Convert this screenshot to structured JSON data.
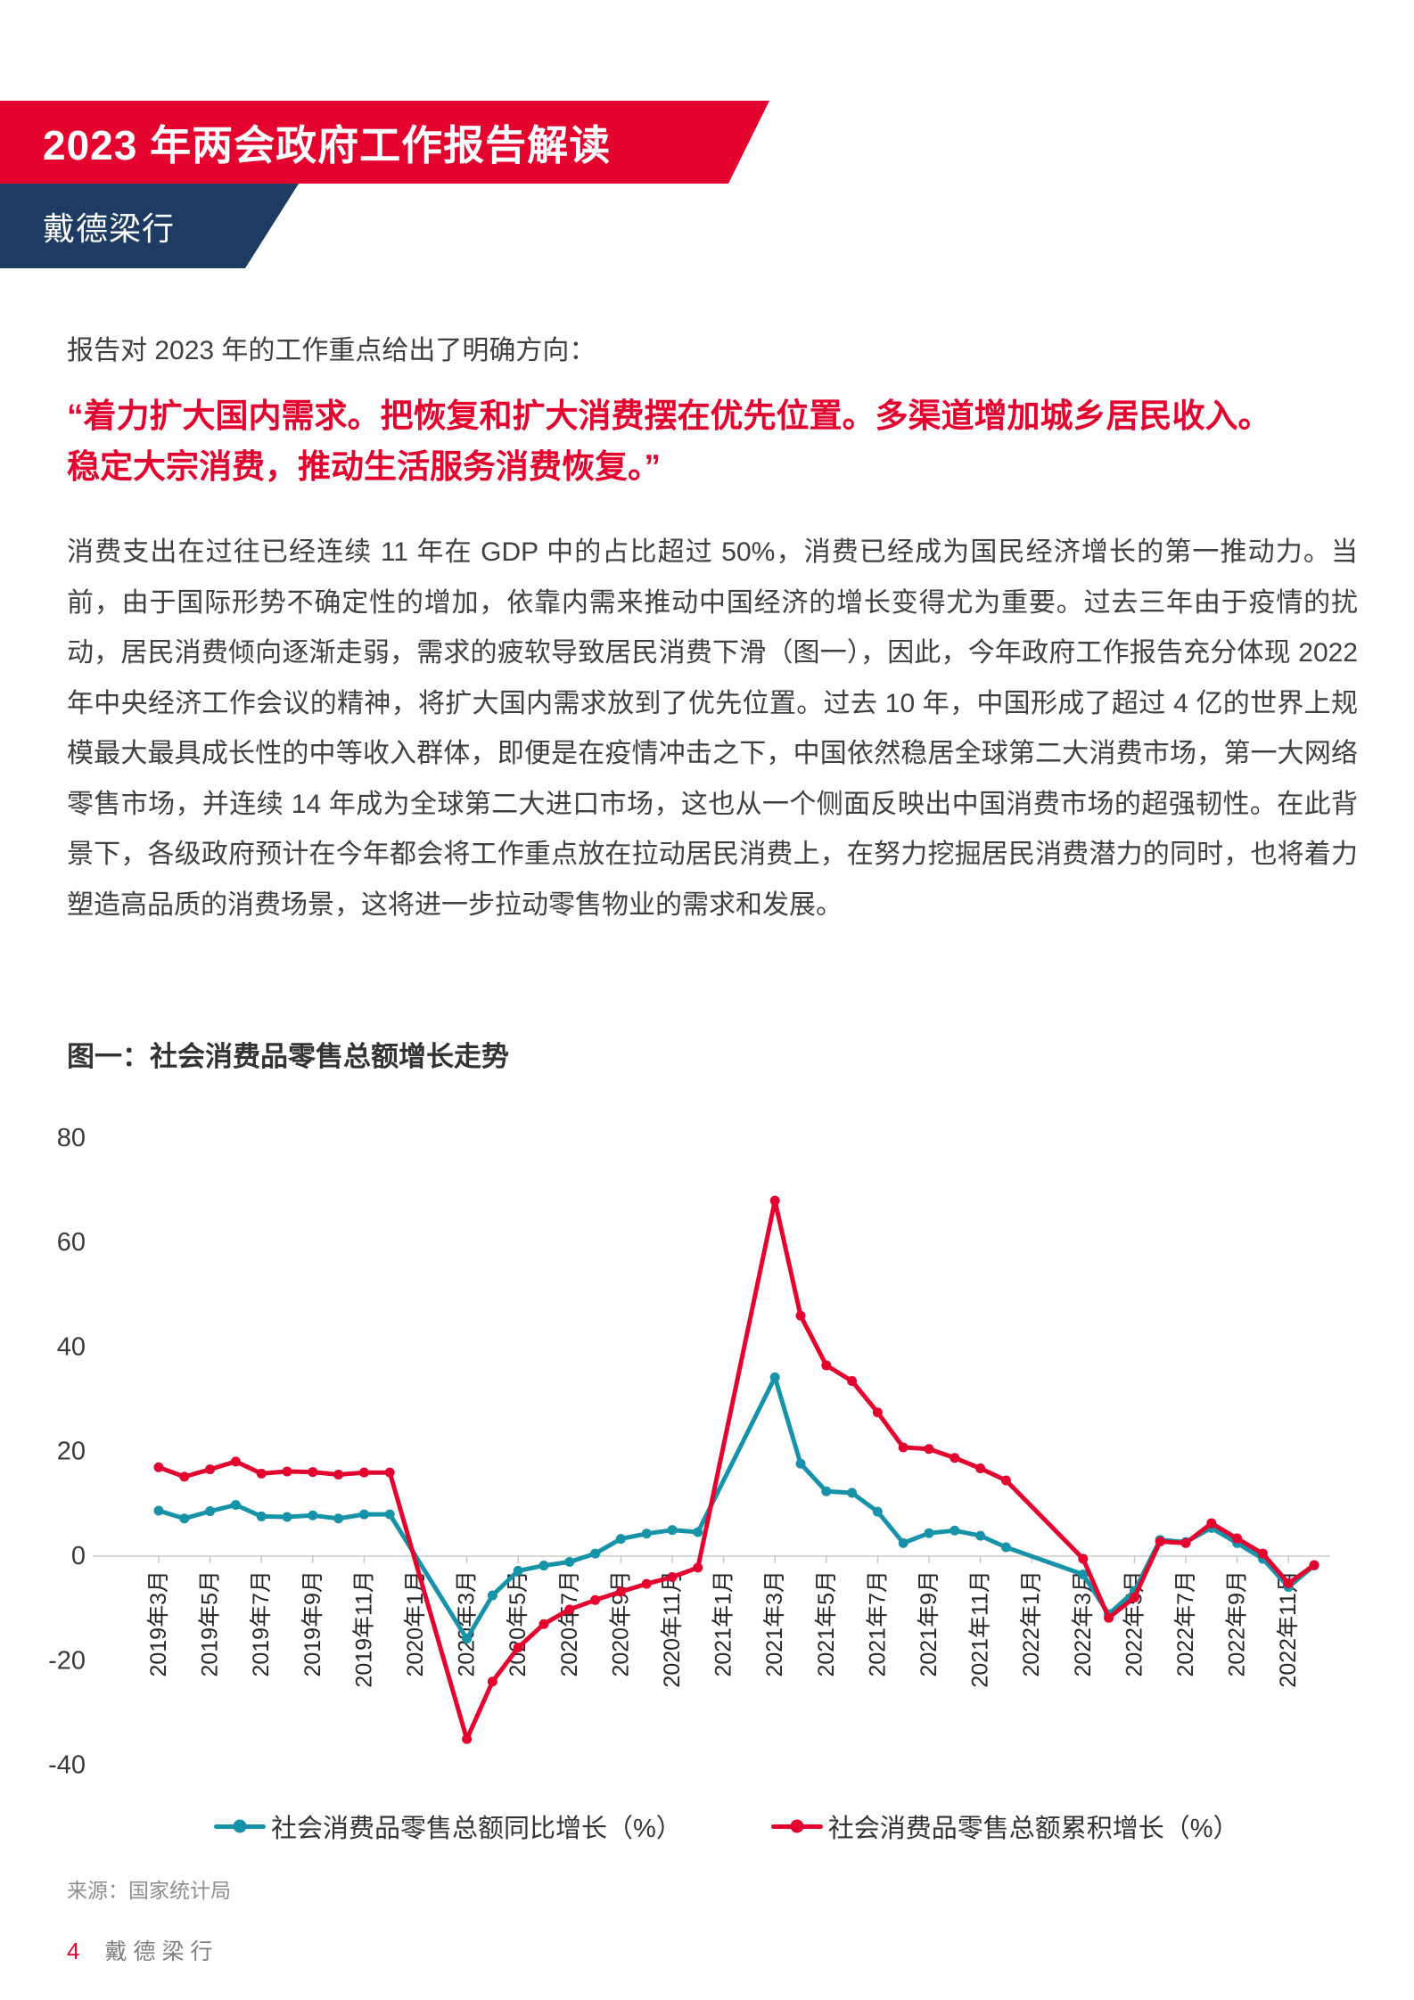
{
  "header": {
    "title": "2023 年两会政府工作报告解读",
    "brand": "戴德梁行",
    "banner_red": "#e4032e",
    "banner_navy": "#1e3c63"
  },
  "intro": "报告对 2023 年的工作重点给出了明确方向：",
  "quote": {
    "color": "#e4032e",
    "lines": [
      "“着力扩大国内需求。把恢复和扩大消费摆在优先位置。多渠道增加城乡居民收入。",
      "稳定大宗消费，推动生活服务消费恢复。”"
    ]
  },
  "paragraph": "消费支出在过往已经连续 11 年在 GDP 中的占比超过 50%，消费已经成为国民经济增长的第一推动力。当前，由于国际形势不确定性的增加，依靠内需来推动中国经济的增长变得尤为重要。过去三年由于疫情的扰动，居民消费倾向逐渐走弱，需求的疲软导致居民消费下滑（图一），因此，今年政府工作报告充分体现 2022 年中央经济工作会议的精神，将扩大国内需求放到了优先位置。过去 10 年，中国形成了超过 4 亿的世界上规模最大最具成长性的中等收入群体，即便是在疫情冲击之下，中国依然稳居全球第二大消费市场，第一大网络零售市场，并连续 14 年成为全球第二大进口市场，这也从一个侧面反映出中国消费市场的超强韧性。在此背景下，各级政府预计在今年都会将工作重点放在拉动居民消费上，在努力挖掘居民消费潜力的同时，也将着力塑造高品质的消费场景，这将进一步拉动零售物业的需求和发展。",
  "figure": {
    "title": "图一：社会消费品零售总额增长走势",
    "source": "来源：国家统计局"
  },
  "chart_data": {
    "type": "line",
    "title": "图一：社会消费品零售总额增长走势",
    "ylim": [
      -40,
      80
    ],
    "yticks": [
      80,
      60,
      40,
      20,
      0,
      -20,
      -40
    ],
    "x_tick_every": 2,
    "grid": false,
    "legend_position": "bottom",
    "categories": [
      "2019年3月",
      "2019年4月",
      "2019年5月",
      "2019年6月",
      "2019年7月",
      "2019年8月",
      "2019年9月",
      "2019年10月",
      "2019年11月",
      "2019年12月",
      "2020年1月",
      "2020年2月",
      "2020年3月",
      "2020年4月",
      "2020年5月",
      "2020年6月",
      "2020年7月",
      "2020年8月",
      "2020年9月",
      "2020年10月",
      "2020年11月",
      "2020年12月",
      "2021年1月",
      "2021年2月",
      "2021年3月",
      "2021年4月",
      "2021年5月",
      "2021年6月",
      "2021年7月",
      "2021年8月",
      "2021年9月",
      "2021年10月",
      "2021年11月",
      "2021年12月",
      "2022年1月",
      "2022年2月",
      "2022年3月",
      "2022年4月",
      "2022年5月",
      "2022年6月",
      "2022年7月",
      "2022年8月",
      "2022年9月",
      "2022年10月",
      "2022年11月",
      "2022年12月"
    ],
    "series": [
      {
        "name": "社会消费品零售总额同比增长（%）",
        "color": "#1693a8",
        "values": [
          8.7,
          7.2,
          8.6,
          9.8,
          7.6,
          7.5,
          7.8,
          7.2,
          8.0,
          8.0,
          null,
          null,
          -15.8,
          -7.5,
          -2.8,
          -1.8,
          -1.1,
          0.5,
          3.3,
          4.3,
          5.0,
          4.6,
          null,
          null,
          34.2,
          17.7,
          12.4,
          12.1,
          8.5,
          2.5,
          4.4,
          4.9,
          3.9,
          1.7,
          null,
          null,
          -3.5,
          -11.1,
          -6.7,
          3.1,
          2.7,
          5.4,
          2.5,
          -0.5,
          -5.9,
          -1.8
        ]
      },
      {
        "name": "社会消费品零售总额累积增长（%）",
        "color": "#e4032e",
        "values": [
          17.0,
          15.2,
          16.6,
          18.1,
          15.8,
          16.2,
          16.1,
          15.6,
          16.0,
          16.0,
          null,
          null,
          -35.0,
          -24.0,
          -17.5,
          -13.0,
          -10.2,
          -8.4,
          -6.8,
          -5.3,
          -4.0,
          -2.2,
          null,
          null,
          68.0,
          46.0,
          36.5,
          33.5,
          27.5,
          20.8,
          20.5,
          18.8,
          16.8,
          14.5,
          null,
          null,
          -0.5,
          -11.8,
          -7.9,
          2.8,
          2.5,
          6.3,
          3.4,
          0.5,
          -5.2,
          -1.7
        ]
      }
    ]
  },
  "footer": {
    "page_number": "4",
    "brand": "戴德梁行"
  }
}
